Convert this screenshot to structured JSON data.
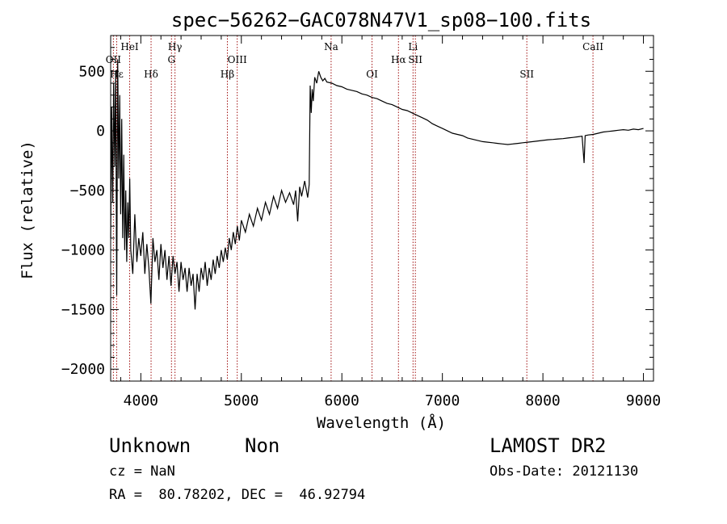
{
  "chart_data": {
    "type": "line",
    "title": "spec−56262−GAC078N47V1_sp08−100.fits",
    "xlabel": "Wavelength (Å)",
    "ylabel": "Flux (relative)",
    "xlim": [
      3700,
      9100
    ],
    "ylim": [
      -2100,
      800
    ],
    "xticks": [
      4000,
      5000,
      6000,
      7000,
      8000,
      9000
    ],
    "xtick_labels": [
      "4000",
      "5000",
      "6000",
      "7000",
      "8000",
      "9000"
    ],
    "yticks": [
      -2000,
      -1500,
      -1000,
      -500,
      0,
      500
    ],
    "ytick_labels": [
      "−2000",
      "−1500",
      "−1000",
      "−500",
      "0",
      "500"
    ],
    "grid": false,
    "line_color": "#000000",
    "marker_color": "#a01010",
    "lines": [
      {
        "label": "OII",
        "x": 3727,
        "row": 2
      },
      {
        "label": "Hε",
        "x": 3760,
        "row": 3
      },
      {
        "label": "HeI",
        "x": 3889,
        "row": 1
      },
      {
        "label": "Hδ",
        "x": 4102,
        "row": 3
      },
      {
        "label": "Hγ",
        "x": 4340,
        "row": 1
      },
      {
        "label": "G",
        "x": 4305,
        "row": 2
      },
      {
        "label": "Hβ",
        "x": 4861,
        "row": 3
      },
      {
        "label": "OIII",
        "x": 4959,
        "row": 2
      },
      {
        "label": "Na",
        "x": 5893,
        "row": 1
      },
      {
        "label": "OI",
        "x": 6300,
        "row": 3
      },
      {
        "label": "Hα",
        "x": 6563,
        "row": 2
      },
      {
        "label": "Li",
        "x": 6708,
        "row": 1
      },
      {
        "label": "SII",
        "x": 6731,
        "row": 2
      },
      {
        "label": "SII",
        "x": 7840,
        "row": 3
      },
      {
        "label": "CaII",
        "x": 8498,
        "row": 1
      }
    ],
    "spectrum": [
      [
        3700,
        -900
      ],
      [
        3710,
        200
      ],
      [
        3720,
        -600
      ],
      [
        3730,
        400
      ],
      [
        3740,
        -300
      ],
      [
        3750,
        500
      ],
      [
        3760,
        -1380
      ],
      [
        3770,
        600
      ],
      [
        3780,
        -400
      ],
      [
        3790,
        300
      ],
      [
        3800,
        -700
      ],
      [
        3810,
        100
      ],
      [
        3820,
        -900
      ],
      [
        3830,
        -200
      ],
      [
        3840,
        -1000
      ],
      [
        3850,
        -500
      ],
      [
        3860,
        -1100
      ],
      [
        3870,
        -600
      ],
      [
        3880,
        -900
      ],
      [
        3890,
        -400
      ],
      [
        3900,
        -1000
      ],
      [
        3920,
        -1200
      ],
      [
        3940,
        -700
      ],
      [
        3960,
        -1100
      ],
      [
        3980,
        -900
      ],
      [
        4000,
        -1050
      ],
      [
        4020,
        -850
      ],
      [
        4040,
        -1200
      ],
      [
        4060,
        -950
      ],
      [
        4080,
        -1150
      ],
      [
        4100,
        -1450
      ],
      [
        4120,
        -900
      ],
      [
        4140,
        -1100
      ],
      [
        4160,
        -1000
      ],
      [
        4180,
        -1250
      ],
      [
        4200,
        -950
      ],
      [
        4220,
        -1150
      ],
      [
        4240,
        -1000
      ],
      [
        4260,
        -1250
      ],
      [
        4280,
        -1050
      ],
      [
        4300,
        -1300
      ],
      [
        4320,
        -1050
      ],
      [
        4340,
        -1200
      ],
      [
        4360,
        -1100
      ],
      [
        4380,
        -1350
      ],
      [
        4400,
        -1100
      ],
      [
        4420,
        -1250
      ],
      [
        4440,
        -1150
      ],
      [
        4460,
        -1350
      ],
      [
        4480,
        -1150
      ],
      [
        4500,
        -1300
      ],
      [
        4520,
        -1200
      ],
      [
        4540,
        -1500
      ],
      [
        4560,
        -1200
      ],
      [
        4580,
        -1350
      ],
      [
        4600,
        -1150
      ],
      [
        4620,
        -1250
      ],
      [
        4640,
        -1100
      ],
      [
        4660,
        -1300
      ],
      [
        4680,
        -1150
      ],
      [
        4700,
        -1250
      ],
      [
        4720,
        -1080
      ],
      [
        4740,
        -1200
      ],
      [
        4760,
        -1050
      ],
      [
        4780,
        -1150
      ],
      [
        4800,
        -1000
      ],
      [
        4820,
        -1100
      ],
      [
        4840,
        -980
      ],
      [
        4860,
        -1080
      ],
      [
        4880,
        -900
      ],
      [
        4900,
        -1000
      ],
      [
        4920,
        -850
      ],
      [
        4940,
        -950
      ],
      [
        4960,
        -800
      ],
      [
        4980,
        -920
      ],
      [
        5000,
        -750
      ],
      [
        5040,
        -850
      ],
      [
        5080,
        -700
      ],
      [
        5120,
        -800
      ],
      [
        5160,
        -650
      ],
      [
        5200,
        -750
      ],
      [
        5240,
        -600
      ],
      [
        5280,
        -700
      ],
      [
        5320,
        -550
      ],
      [
        5360,
        -650
      ],
      [
        5400,
        -500
      ],
      [
        5440,
        -600
      ],
      [
        5480,
        -520
      ],
      [
        5520,
        -620
      ],
      [
        5540,
        -500
      ],
      [
        5560,
        -760
      ],
      [
        5580,
        -470
      ],
      [
        5600,
        -550
      ],
      [
        5630,
        -420
      ],
      [
        5660,
        -560
      ],
      [
        5675,
        -450
      ],
      [
        5685,
        380
      ],
      [
        5695,
        150
      ],
      [
        5705,
        350
      ],
      [
        5715,
        250
      ],
      [
        5730,
        450
      ],
      [
        5750,
        400
      ],
      [
        5770,
        500
      ],
      [
        5790,
        450
      ],
      [
        5810,
        420
      ],
      [
        5830,
        440
      ],
      [
        5850,
        410
      ],
      [
        5900,
        400
      ],
      [
        5950,
        380
      ],
      [
        6000,
        370
      ],
      [
        6050,
        350
      ],
      [
        6100,
        340
      ],
      [
        6150,
        330
      ],
      [
        6200,
        310
      ],
      [
        6250,
        300
      ],
      [
        6300,
        280
      ],
      [
        6350,
        270
      ],
      [
        6400,
        250
      ],
      [
        6450,
        230
      ],
      [
        6500,
        220
      ],
      [
        6550,
        200
      ],
      [
        6600,
        180
      ],
      [
        6650,
        170
      ],
      [
        6700,
        150
      ],
      [
        6750,
        130
      ],
      [
        6800,
        110
      ],
      [
        6850,
        90
      ],
      [
        6900,
        60
      ],
      [
        6950,
        40
      ],
      [
        7000,
        20
      ],
      [
        7050,
        0
      ],
      [
        7100,
        -20
      ],
      [
        7150,
        -30
      ],
      [
        7200,
        -40
      ],
      [
        7250,
        -60
      ],
      [
        7300,
        -70
      ],
      [
        7350,
        -80
      ],
      [
        7400,
        -90
      ],
      [
        7450,
        -95
      ],
      [
        7500,
        -100
      ],
      [
        7550,
        -105
      ],
      [
        7600,
        -110
      ],
      [
        7650,
        -115
      ],
      [
        7700,
        -110
      ],
      [
        7750,
        -105
      ],
      [
        7800,
        -100
      ],
      [
        7850,
        -95
      ],
      [
        7900,
        -90
      ],
      [
        7950,
        -85
      ],
      [
        8000,
        -80
      ],
      [
        8050,
        -75
      ],
      [
        8100,
        -72
      ],
      [
        8150,
        -68
      ],
      [
        8200,
        -65
      ],
      [
        8250,
        -60
      ],
      [
        8300,
        -55
      ],
      [
        8350,
        -50
      ],
      [
        8390,
        -45
      ],
      [
        8410,
        -270
      ],
      [
        8420,
        -40
      ],
      [
        8450,
        -35
      ],
      [
        8500,
        -30
      ],
      [
        8550,
        -20
      ],
      [
        8600,
        -10
      ],
      [
        8650,
        -5
      ],
      [
        8700,
        0
      ],
      [
        8750,
        5
      ],
      [
        8800,
        10
      ],
      [
        8850,
        5
      ],
      [
        8900,
        15
      ],
      [
        8950,
        10
      ],
      [
        9000,
        20
      ]
    ]
  },
  "footer": {
    "object_class": "Unknown",
    "object_subclass": "Non",
    "survey": "LAMOST DR2",
    "cz": "cz = NaN",
    "obs_date": "Obs-Date: 20121130",
    "coords": "RA =  80.78202, DEC =  46.92794"
  }
}
